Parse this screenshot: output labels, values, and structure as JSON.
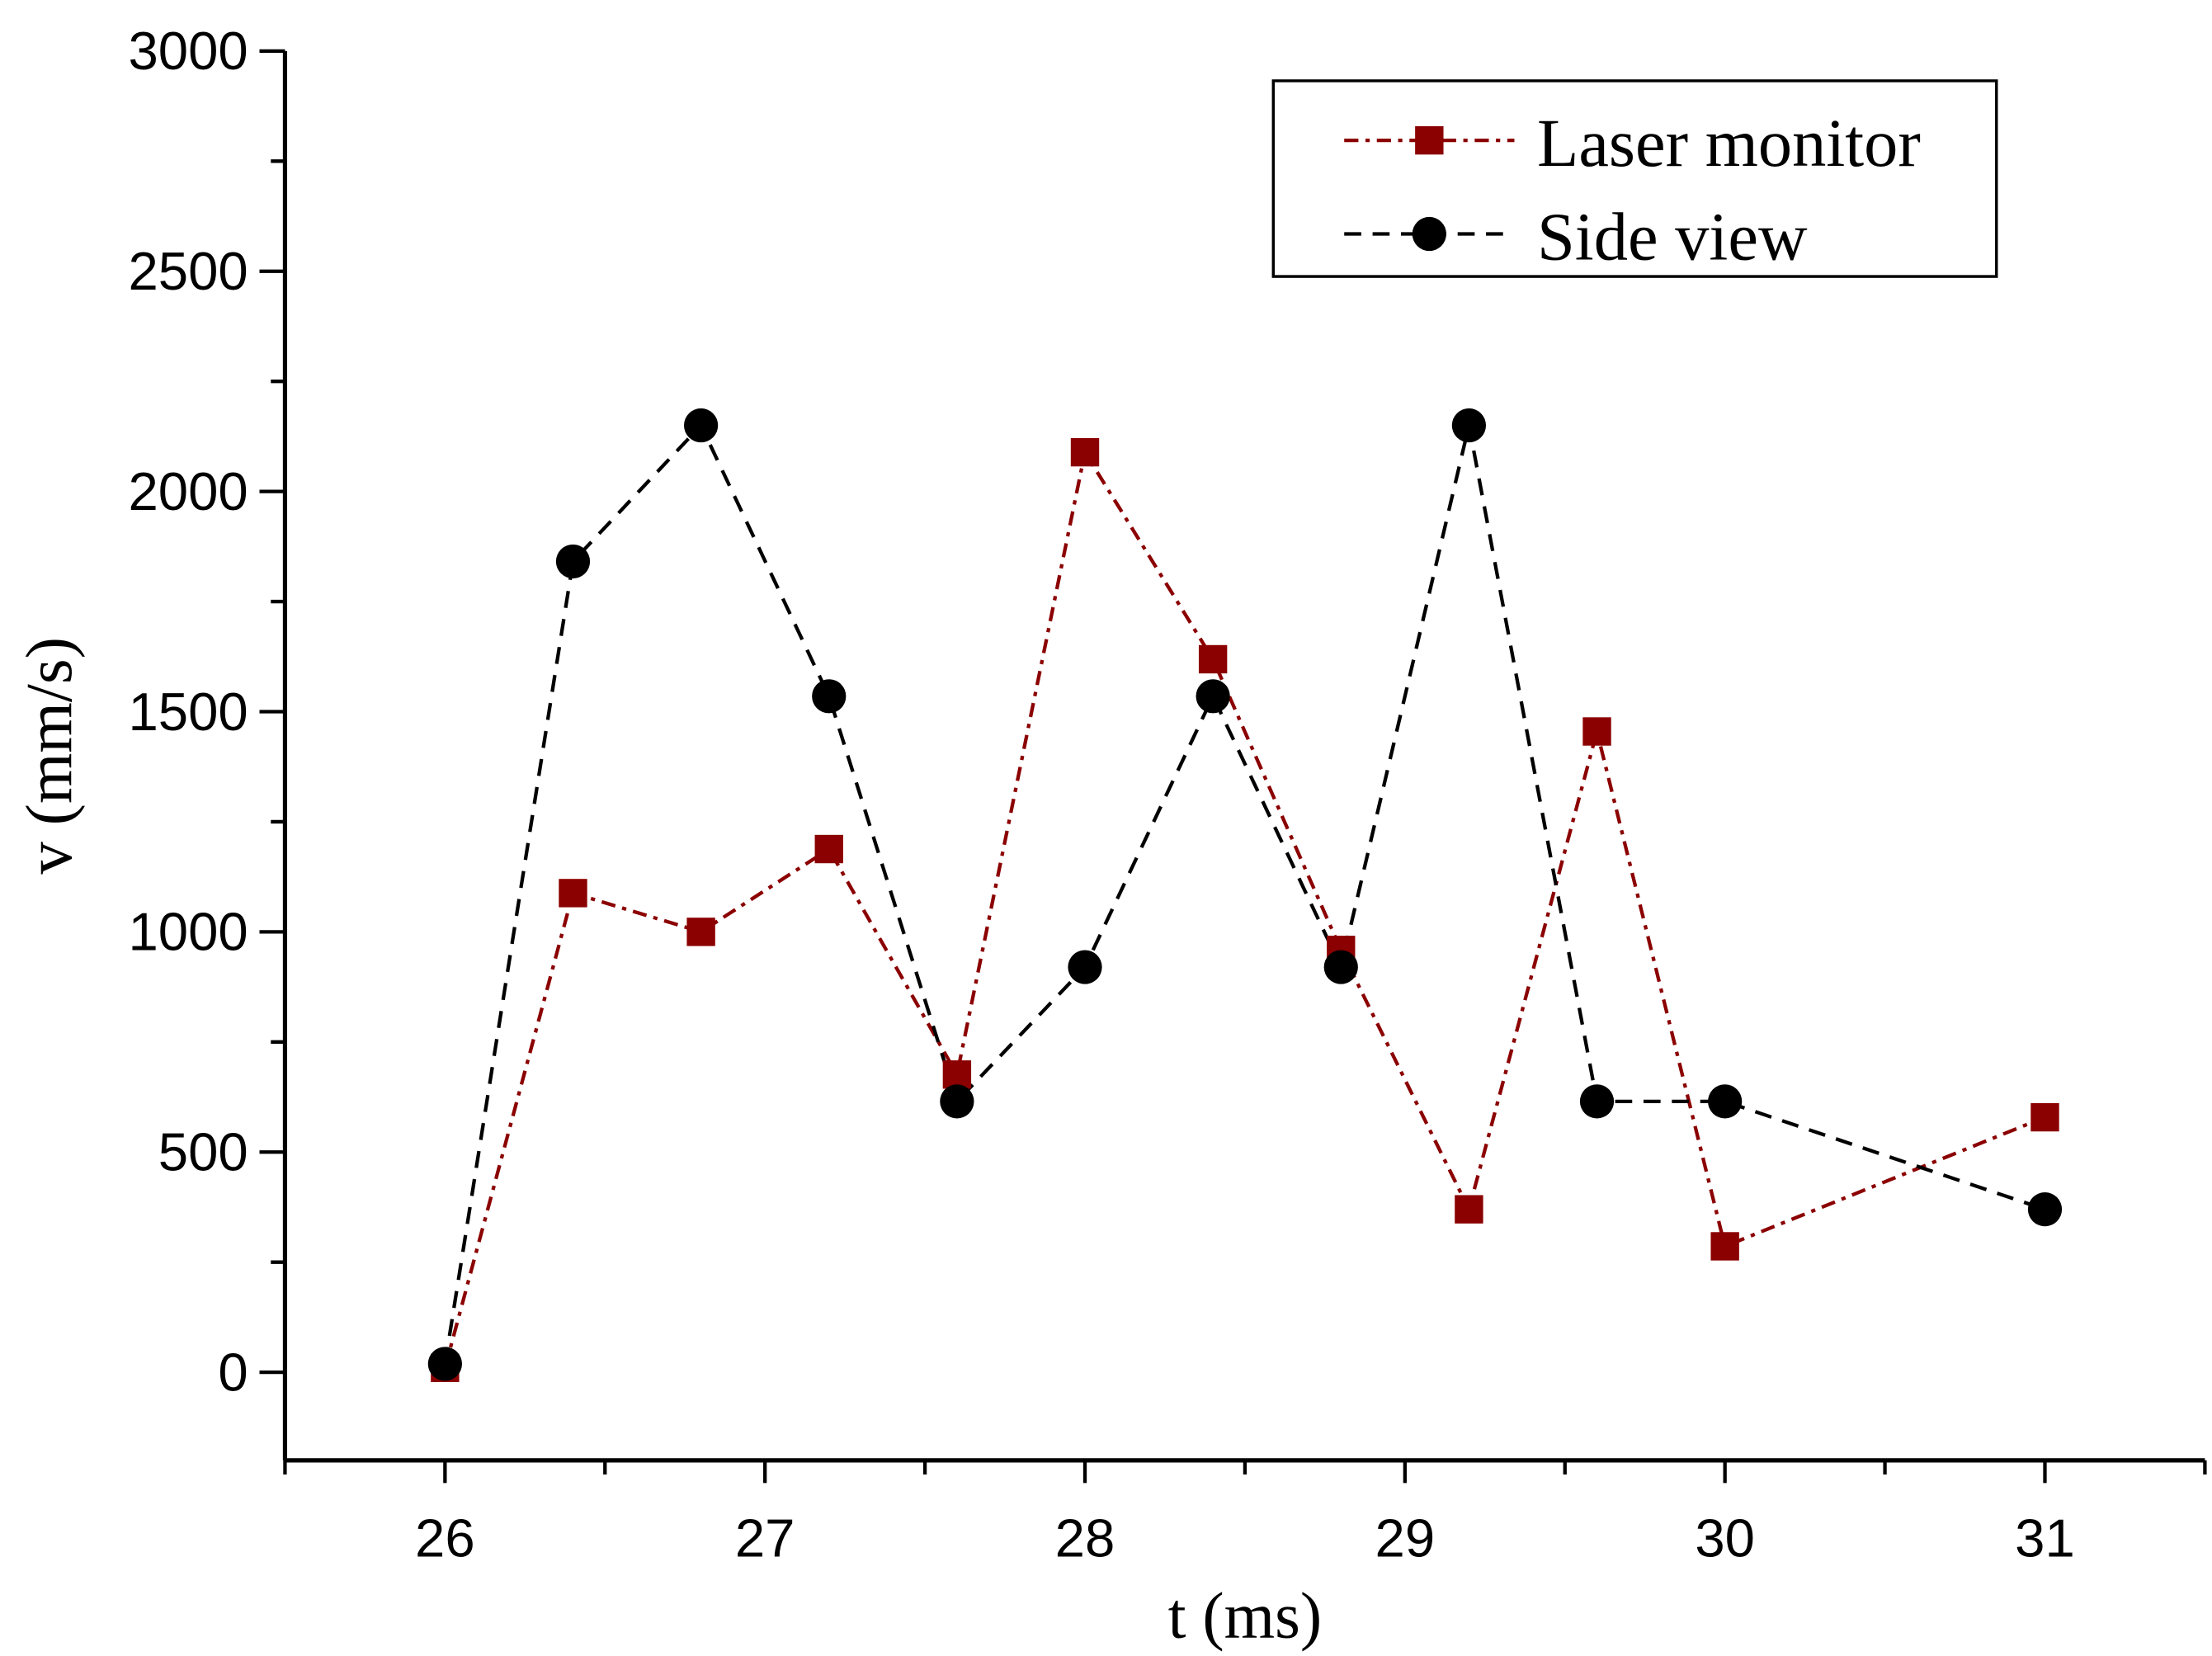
{
  "chart_data": {
    "type": "line",
    "title": "",
    "xlabel": "t (ms)",
    "ylabel": "v (mm/s)",
    "xlim": [
      25.5,
      31.5
    ],
    "ylim": [
      -200,
      3000
    ],
    "xticks": [
      26,
      27,
      28,
      29,
      30,
      31
    ],
    "yticks": [
      0,
      500,
      1000,
      1500,
      2000,
      2500,
      3000
    ],
    "grid": false,
    "legend_position": "top-right",
    "series": [
      {
        "name": "Laser monitor",
        "color": "#8b0000",
        "marker": "square",
        "line_style": "dash-dot",
        "x": [
          26.0,
          26.4,
          26.8,
          27.2,
          27.6,
          28.0,
          28.4,
          28.8,
          29.2,
          29.6,
          30.0,
          31.0
        ],
        "y": [
          10,
          1088,
          1000,
          1188,
          676,
          2089,
          1619,
          959,
          370,
          1455,
          286,
          579
        ]
      },
      {
        "name": "Side view",
        "color": "#000000",
        "marker": "circle",
        "line_style": "dashed",
        "x": [
          26.0,
          26.4,
          26.8,
          27.2,
          27.6,
          28.0,
          28.4,
          28.8,
          29.2,
          29.6,
          30.0,
          31.0
        ],
        "y": [
          19,
          1841,
          2150,
          1535,
          615,
          920,
          1535,
          920,
          2150,
          615,
          615,
          370
        ]
      }
    ]
  }
}
